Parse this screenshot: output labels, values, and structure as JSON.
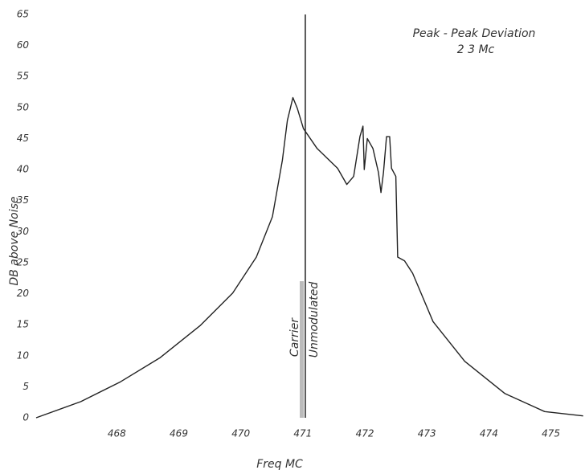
{
  "chart_data": {
    "type": "line",
    "x_label": "Freq MC",
    "y_label": "DB above Noise",
    "annotations": [
      "Peak - Peak Deviation",
      "2 3 Mc"
    ],
    "carrier_labels": [
      "Carrier",
      "Unmodulated"
    ],
    "carrier_line": {
      "x": 471.04,
      "top": 65
    },
    "xlim": [
      466.7,
      475.55
    ],
    "ylim": [
      0,
      65
    ],
    "xticks": [
      468,
      469,
      470,
      471,
      472,
      473,
      474,
      475
    ],
    "yticks": [
      0,
      5,
      10,
      15,
      20,
      25,
      30,
      35,
      40,
      45,
      50,
      55,
      60,
      65
    ],
    "grid": false,
    "color": "#222222",
    "x": [
      466.7,
      467.42,
      468.06,
      468.7,
      469.35,
      469.87,
      470.25,
      470.51,
      470.67,
      470.75,
      470.84,
      470.91,
      471.01,
      471.23,
      471.56,
      471.71,
      471.82,
      471.92,
      471.97,
      471.99,
      472.04,
      472.13,
      472.22,
      472.26,
      472.3,
      472.35,
      472.4,
      472.43,
      472.5,
      472.53,
      472.64,
      472.77,
      473.1,
      473.61,
      474.26,
      474.9,
      475.52
    ],
    "values": [
      0,
      2.6,
      5.8,
      9.7,
      14.9,
      20.1,
      25.9,
      32.4,
      41.5,
      47.9,
      51.6,
      49.9,
      46.6,
      43.4,
      40.2,
      37.6,
      38.9,
      45.3,
      47,
      40,
      45,
      43.4,
      39.5,
      36.3,
      39.5,
      45.3,
      45.3,
      40.2,
      38.9,
      25.9,
      25.3,
      23.3,
      15.5,
      9.1,
      3.9,
      1,
      0.3
    ]
  }
}
